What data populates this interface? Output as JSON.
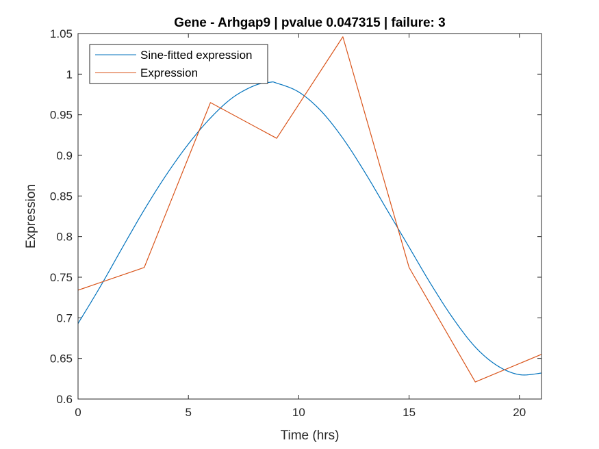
{
  "chart_data": {
    "type": "line",
    "title": "Gene - Arhgap9 | pvalue 0.047315 | failure: 3",
    "xlabel": "Time (hrs)",
    "ylabel": "Expression",
    "xlim": [
      0,
      21
    ],
    "ylim": [
      0.6,
      1.05
    ],
    "xticks": [
      0,
      5,
      10,
      15,
      20
    ],
    "xtick_labels": [
      "0",
      "5",
      "10",
      "15",
      "20"
    ],
    "yticks": [
      0.6,
      0.65,
      0.7,
      0.75,
      0.8,
      0.85,
      0.9,
      0.95,
      1,
      1.05
    ],
    "ytick_labels": [
      "0.6",
      "0.65",
      "0.7",
      "0.75",
      "0.8",
      "0.85",
      "0.9",
      "0.95",
      "1",
      "1.05"
    ],
    "grid": false,
    "legend_position": "top-left",
    "series": [
      {
        "name": "Sine-fitted expression",
        "color": "#0072BD",
        "x": [
          0,
          1,
          2,
          3,
          4,
          5,
          6,
          7,
          8,
          8.7,
          9,
          10,
          11,
          12,
          13,
          14,
          15,
          16,
          17,
          18,
          19,
          20,
          21
        ],
        "y": [
          0.693,
          0.738,
          0.786,
          0.833,
          0.876,
          0.914,
          0.946,
          0.971,
          0.986,
          0.99,
          0.989,
          0.978,
          0.955,
          0.921,
          0.879,
          0.833,
          0.787,
          0.741,
          0.699,
          0.664,
          0.641,
          0.63,
          0.632
        ]
      },
      {
        "name": "Expression",
        "color": "#D95319",
        "x": [
          0,
          3,
          6,
          9,
          12,
          15,
          18,
          21
        ],
        "y": [
          0.734,
          0.762,
          0.965,
          0.921,
          1.046,
          0.762,
          0.621,
          0.655
        ]
      }
    ]
  }
}
